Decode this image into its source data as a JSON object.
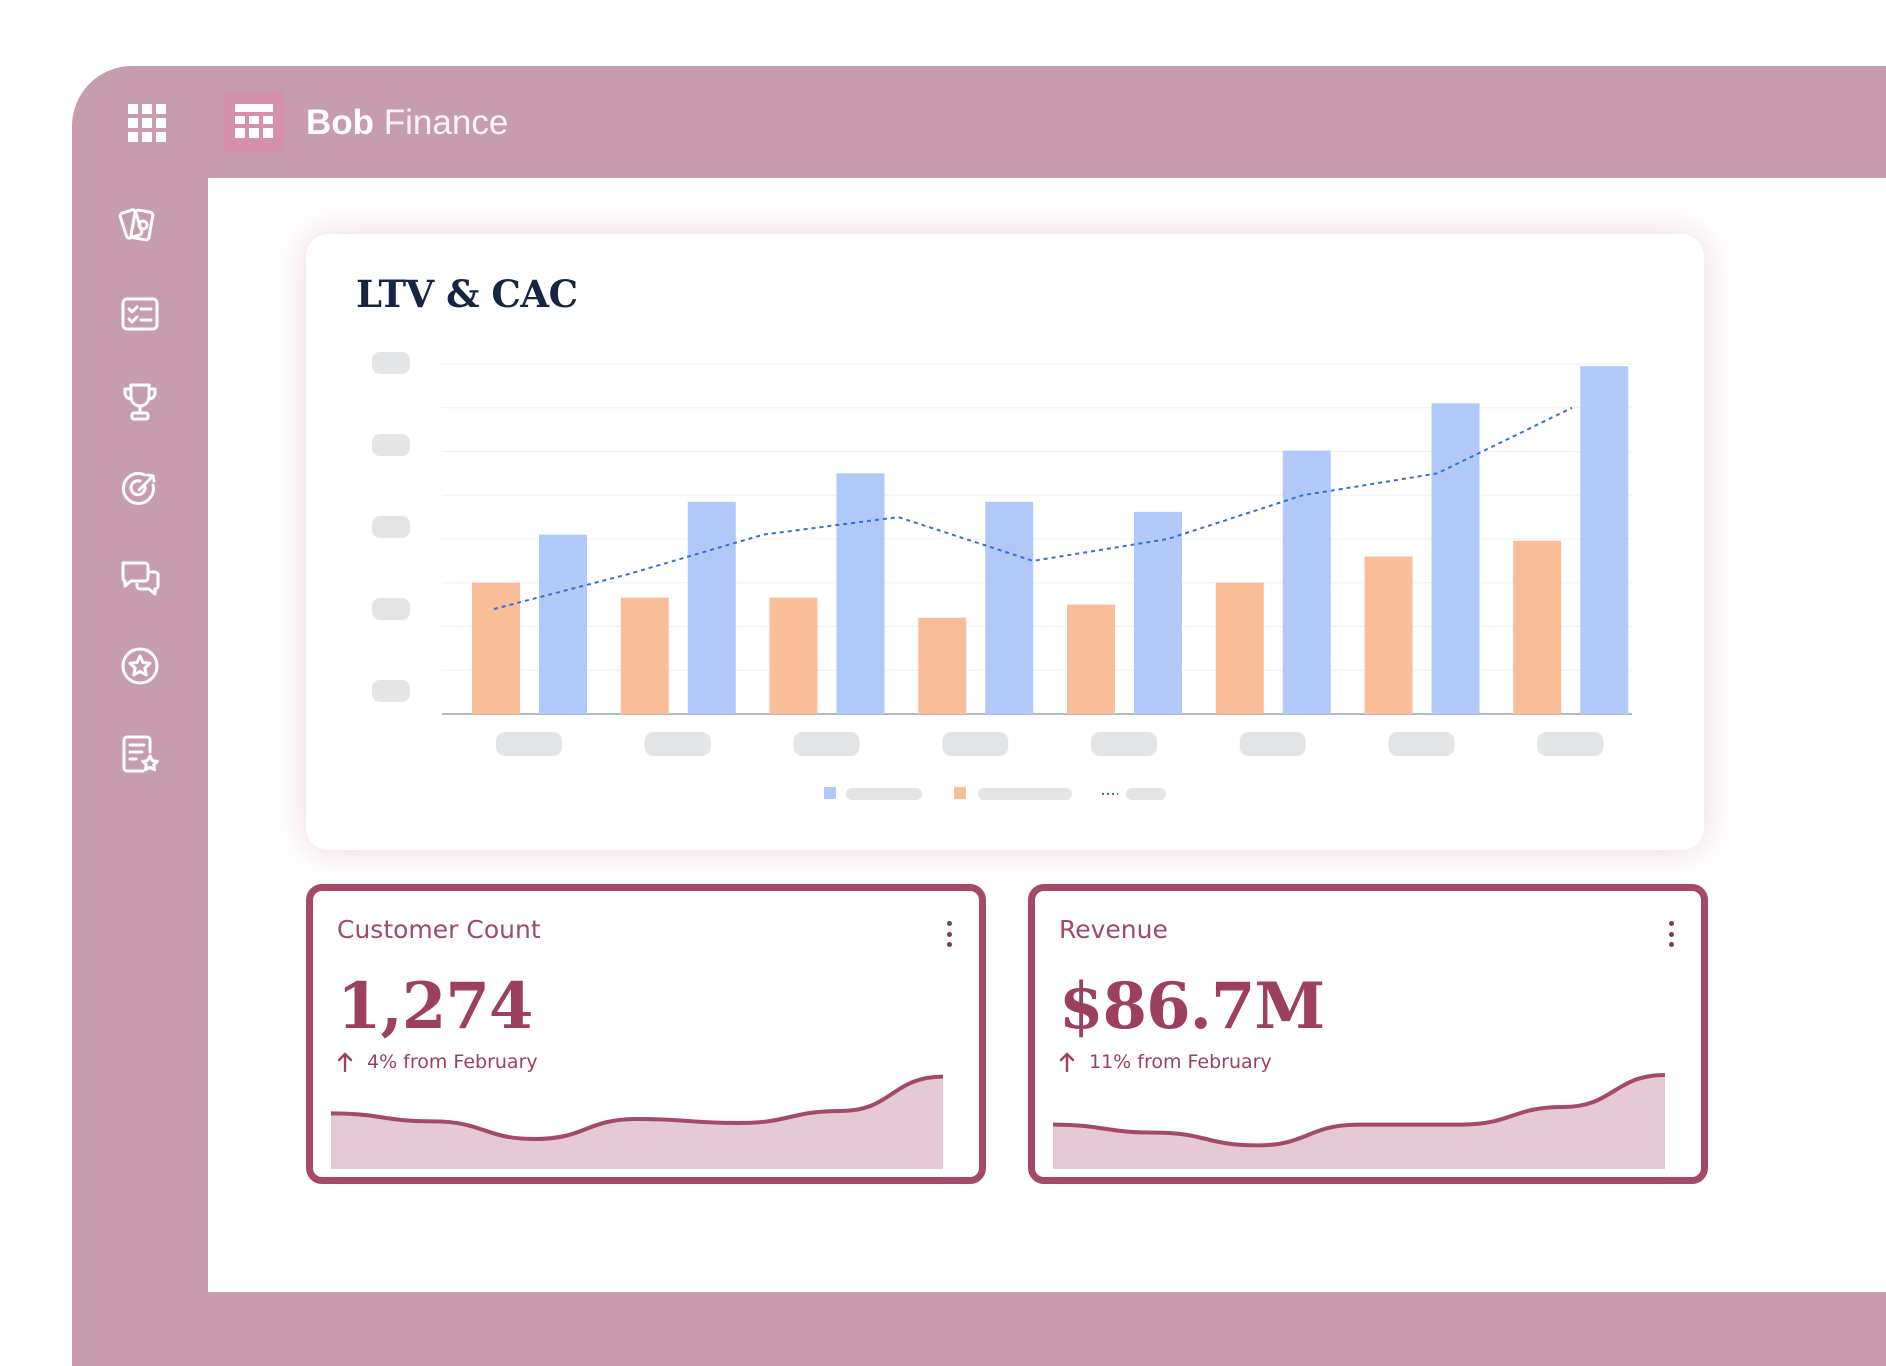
{
  "app": {
    "name_bold": "Bob",
    "name_light": "Finance"
  },
  "topbar": {
    "apps_icon": "grid-icon",
    "logo_icon": "table-icon"
  },
  "sidebar": {
    "items": [
      {
        "icon": "cards-icon"
      },
      {
        "icon": "checklist-icon"
      },
      {
        "icon": "trophy-icon"
      },
      {
        "icon": "target-icon"
      },
      {
        "icon": "chat-icon"
      },
      {
        "icon": "star-badge-icon"
      },
      {
        "icon": "document-star-icon"
      }
    ]
  },
  "chart": {
    "title": "LTV & CAC"
  },
  "chart_data": {
    "type": "bar",
    "title": "LTV & CAC",
    "categories_count": 8,
    "ylim": [
      0,
      8
    ],
    "grid": true,
    "legend_position": "bottom",
    "series": [
      {
        "kind": "bar",
        "color": "#f9bd97",
        "values": [
          3.0,
          2.66,
          2.66,
          2.2,
          2.5,
          3.0,
          3.6,
          3.96
        ]
      },
      {
        "kind": "bar",
        "color": "#b0c9f8",
        "values": [
          4.1,
          4.85,
          5.5,
          4.85,
          4.62,
          6.02,
          7.1,
          7.95
        ]
      },
      {
        "kind": "line",
        "color": "#2f6fe0",
        "style": "dashed",
        "values": [
          2.4,
          3.2,
          4.1,
          4.5,
          3.5,
          4.0,
          5.0,
          5.5,
          7.0
        ]
      }
    ]
  },
  "kpis": [
    {
      "title": "Customer Count",
      "value": "1,274",
      "change": "4% from February",
      "trend": [
        0.52,
        0.42,
        0.2,
        0.45,
        0.4,
        0.55,
        0.98
      ]
    },
    {
      "title": "Revenue",
      "value": "$86.7M",
      "change": "11% from February",
      "trend": [
        0.38,
        0.28,
        0.12,
        0.38,
        0.38,
        0.6,
        1.0
      ]
    }
  ],
  "colors": {
    "frame": "#c79caf",
    "accent": "#a34a6a",
    "bar_orange": "#f9bd97",
    "bar_blue": "#b0c9f8",
    "line_blue": "#2f6fe0"
  }
}
